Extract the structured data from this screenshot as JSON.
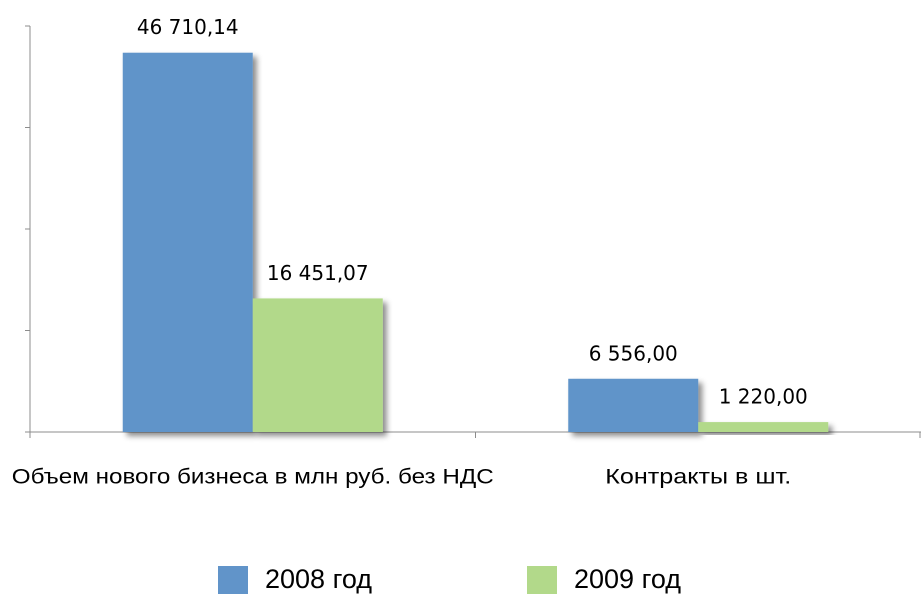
{
  "chart_data": {
    "type": "bar",
    "categories": [
      "Объем нового бизнеса в млн руб. без НДС",
      "Контракты в шт."
    ],
    "series": [
      {
        "name": "2008 год",
        "color": "#6194c9",
        "values": [
          46710.14,
          6556.0
        ],
        "value_labels": [
          "46 710,14",
          "6 556,00"
        ]
      },
      {
        "name": "2009 год",
        "color": "#b2d98a",
        "values": [
          16451.07,
          1220.0
        ],
        "value_labels": [
          "16 451,07",
          "1 220,00"
        ]
      }
    ],
    "ylim": [
      0,
      50000
    ],
    "yticks": [
      0,
      12500,
      25000,
      37500,
      50000
    ],
    "grid": false,
    "legend": "bottom"
  }
}
